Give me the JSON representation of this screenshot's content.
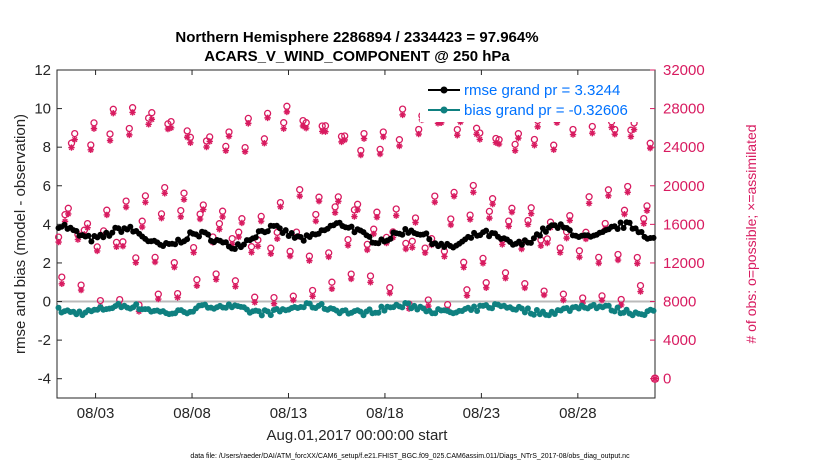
{
  "chart_data": {
    "type": "line",
    "title": "Northern Hemisphere 2286894 / 2334423 = 97.964%",
    "subtitle": "ACARS_V_WIND_COMPONENT @ 250 hPa",
    "xlabel": "Aug.01,2017 00:00:00 start",
    "ylabel_left": "rmse and bias (model - observation)",
    "ylabel_right": "# of obs: o=possible; ×=assimilated",
    "x_range_days": [
      1.0,
      32.0
    ],
    "x_ticks": [
      {
        "day": 3,
        "label": "08/03"
      },
      {
        "day": 8,
        "label": "08/08"
      },
      {
        "day": 13,
        "label": "08/13"
      },
      {
        "day": 18,
        "label": "08/18"
      },
      {
        "day": 23,
        "label": "08/23"
      },
      {
        "day": 28,
        "label": "08/28"
      }
    ],
    "ylim_left": [
      -5,
      12
    ],
    "yticks_left": [
      "12",
      "10",
      "8",
      "6",
      "4",
      "2",
      "0",
      "-2",
      "-4"
    ],
    "ylim_right": [
      -2000,
      32000
    ],
    "yticks_right": [
      "32000",
      "28000",
      "24000",
      "20000",
      "16000",
      "12000",
      "8000",
      "4000",
      "0"
    ],
    "legend": [
      {
        "label": "rmse grand pr = 3.3244",
        "color": "#000000"
      },
      {
        "label": "bias grand pr = -0.32606",
        "color": "#0f8080"
      }
    ],
    "series": [
      {
        "name": "rmse",
        "color": "#000000",
        "base_value": 3.4
      },
      {
        "name": "bias",
        "color": "#0f8080",
        "base_value": -0.4
      },
      {
        "name": "possible",
        "color": "#d81b60",
        "marker": "o",
        "daily_pattern": [
          13000,
          8500,
          15500,
          17500,
          24700,
          26000
        ]
      },
      {
        "name": "assimilated",
        "color": "#d81b60",
        "marker": "*",
        "daily_pattern": [
          12500,
          8200,
          15000,
          17000,
          24000,
          25500
        ]
      }
    ],
    "zero_obs_point": {
      "day": 32.0,
      "value": 0
    }
  },
  "footer": "data file: /Users/raeder/DAI/ATM_forcXX/CAM6_setup/f.e21.FHIST_BGC.f09_025.CAM6assim.011/Diags_NTrS_2017-08/obs_diag_output.nc"
}
